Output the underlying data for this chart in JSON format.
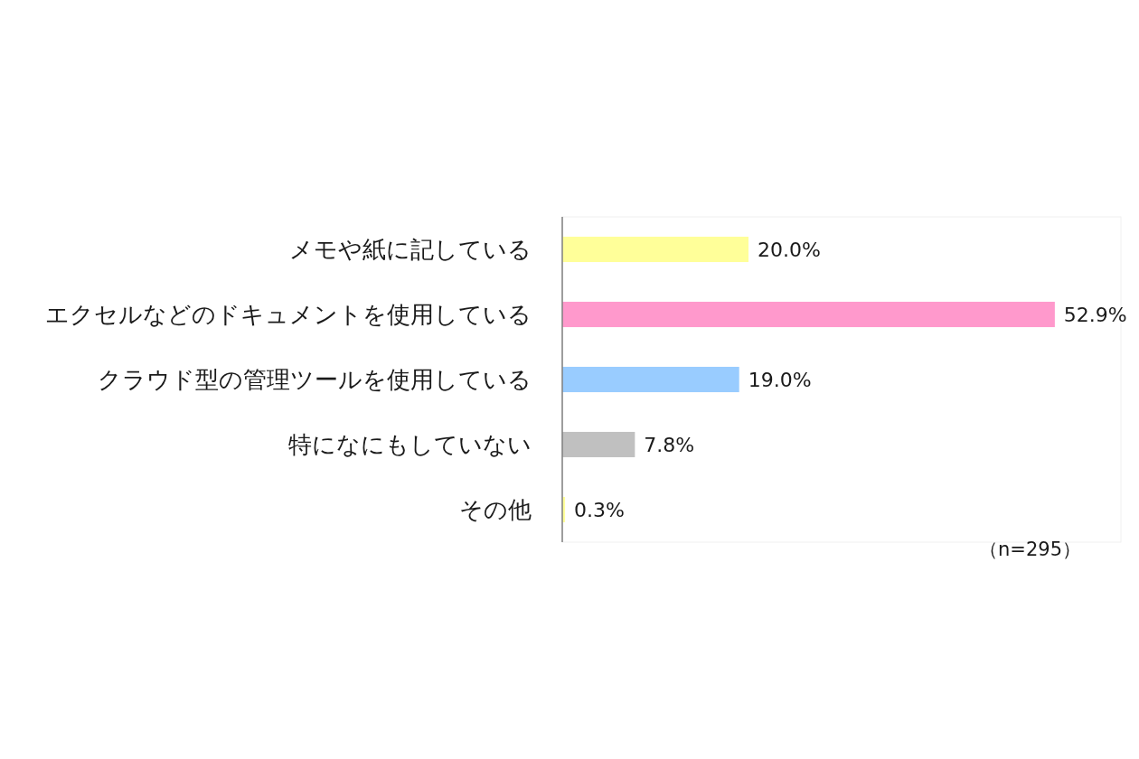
{
  "chart_data": {
    "type": "bar",
    "orientation": "horizontal",
    "categories": [
      "メモや紙に記している",
      "エクセルなどのドキュメントを使用している",
      "クラウド型の管理ツールを使用している",
      "特になにもしていない",
      "その他"
    ],
    "values": [
      20.0,
      52.9,
      19.0,
      7.8,
      0.3
    ],
    "colors": [
      "#ffff99",
      "#ff99cc",
      "#99ccff",
      "#c0c0c0",
      "#ffff99"
    ],
    "value_labels": [
      "20.0%",
      "52.9%",
      "19.0%",
      "7.8%",
      "0.3%"
    ],
    "xlim": [
      0,
      60
    ],
    "annotations": [
      "（n=295）"
    ]
  }
}
